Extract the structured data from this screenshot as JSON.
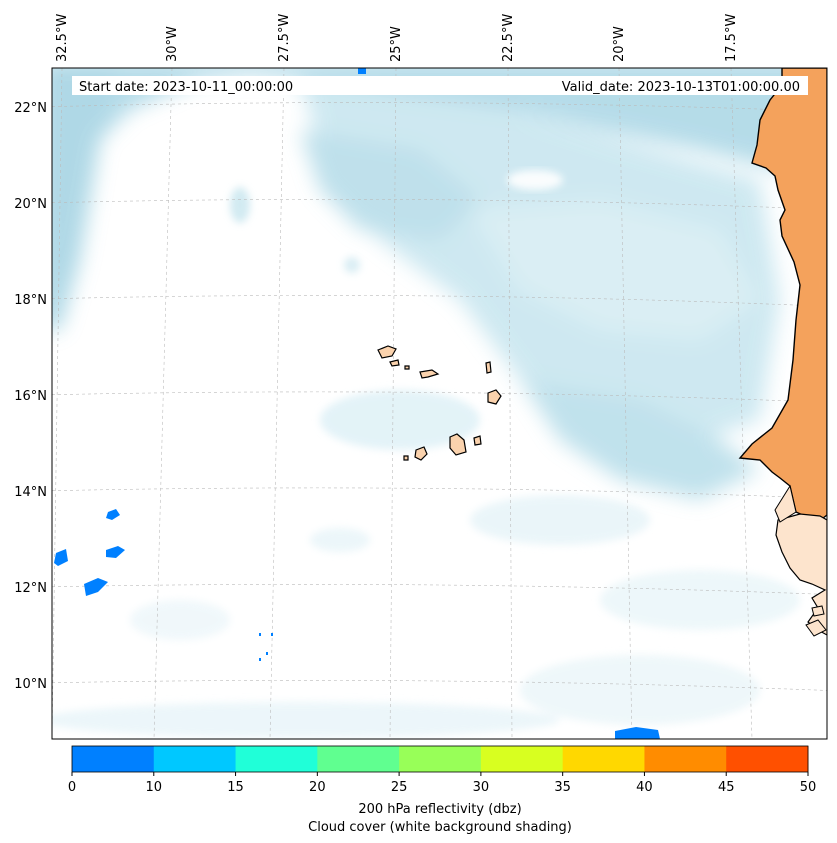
{
  "map": {
    "start_date": "Start date: 2023-10-11_00:00:00",
    "valid_date": "Valid_date: 2023-10-13T01:00:00.00",
    "lon_labels": [
      "32.5°W",
      "30°W",
      "27.5°W",
      "25°W",
      "22.5°W",
      "20°W",
      "17.5°W"
    ],
    "lat_labels": [
      "22°N",
      "20°N",
      "18°N",
      "16°N",
      "14°N",
      "12°N",
      "10°N"
    ],
    "land_color": "#f4a25c",
    "island_color": "#fad2ad",
    "cloud_color": "#aed8e6",
    "reflectivity_color": "#0080ff"
  },
  "colorbar": {
    "ticks": [
      "0",
      "10",
      "15",
      "20",
      "25",
      "30",
      "35",
      "40",
      "45",
      "50"
    ],
    "colors": [
      "#0080ff",
      "#00c8ff",
      "#20ffd8",
      "#60ff90",
      "#98ff58",
      "#d8ff20",
      "#ffd800",
      "#ff8c00",
      "#ff5000"
    ],
    "title_line1": "200 hPa reflectivity (dbz)",
    "title_line2": "Cloud cover (white background shading)"
  }
}
